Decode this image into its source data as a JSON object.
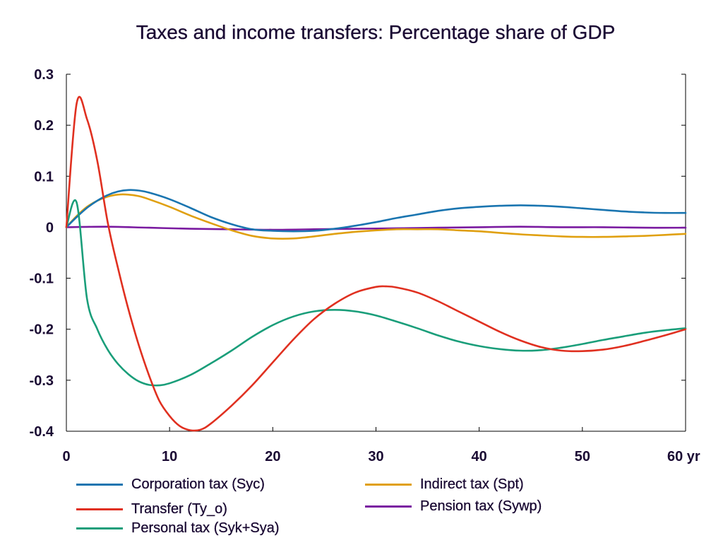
{
  "chart_data": {
    "type": "line",
    "title": "Taxes and income transfers: Percentage share of GDP",
    "xlabel": "",
    "ylabel": "",
    "xlim": [
      0,
      60
    ],
    "ylim": [
      -0.4,
      0.3
    ],
    "x_ticks": [
      0,
      10,
      20,
      30,
      40,
      50,
      60
    ],
    "x_tick_labels": [
      "0",
      "10",
      "20",
      "30",
      "40",
      "50",
      "60 yr"
    ],
    "y_ticks": [
      0.3,
      0.2,
      0.1,
      0,
      -0.1,
      -0.2,
      -0.3,
      -0.4
    ],
    "y_tick_labels": [
      "0.3",
      "0.2",
      "0.1",
      "0",
      "-0.1",
      "-0.2",
      "-0.3",
      "-0.4"
    ],
    "grid": false,
    "legend_position": "bottom",
    "series": [
      {
        "name": "Corporation tax (Syc)",
        "color": "#1a75b0",
        "points": [
          [
            0,
            0
          ],
          [
            1,
            0.02
          ],
          [
            2,
            0.038
          ],
          [
            3,
            0.052
          ],
          [
            4,
            0.063
          ],
          [
            5,
            0.07
          ],
          [
            6,
            0.073
          ],
          [
            7,
            0.072
          ],
          [
            8,
            0.068
          ],
          [
            10,
            0.055
          ],
          [
            12,
            0.038
          ],
          [
            14,
            0.02
          ],
          [
            16,
            0.006
          ],
          [
            18,
            -0.004
          ],
          [
            20,
            -0.007
          ],
          [
            22,
            -0.008
          ],
          [
            24,
            -0.007
          ],
          [
            26,
            -0.003
          ],
          [
            28,
            0.003
          ],
          [
            30,
            0.01
          ],
          [
            32,
            0.018
          ],
          [
            34,
            0.025
          ],
          [
            36,
            0.032
          ],
          [
            38,
            0.037
          ],
          [
            40,
            0.04
          ],
          [
            42,
            0.042
          ],
          [
            44,
            0.043
          ],
          [
            46,
            0.042
          ],
          [
            48,
            0.04
          ],
          [
            50,
            0.037
          ],
          [
            52,
            0.034
          ],
          [
            54,
            0.031
          ],
          [
            56,
            0.029
          ],
          [
            58,
            0.028
          ],
          [
            60,
            0.028
          ]
        ]
      },
      {
        "name": "Transfer (Ty_o)",
        "color": "#e03020",
        "points": [
          [
            0,
            0
          ],
          [
            1,
            0.243
          ],
          [
            2,
            0.212
          ],
          [
            3,
            0.13
          ],
          [
            4,
            0.01
          ],
          [
            5,
            -0.08
          ],
          [
            6,
            -0.16
          ],
          [
            7,
            -0.23
          ],
          [
            8,
            -0.29
          ],
          [
            9,
            -0.34
          ],
          [
            10,
            -0.37
          ],
          [
            11,
            -0.39
          ],
          [
            12,
            -0.398
          ],
          [
            13,
            -0.397
          ],
          [
            14,
            -0.385
          ],
          [
            16,
            -0.35
          ],
          [
            18,
            -0.31
          ],
          [
            20,
            -0.265
          ],
          [
            22,
            -0.22
          ],
          [
            24,
            -0.18
          ],
          [
            26,
            -0.15
          ],
          [
            28,
            -0.128
          ],
          [
            30,
            -0.117
          ],
          [
            31,
            -0.116
          ],
          [
            32,
            -0.118
          ],
          [
            34,
            -0.128
          ],
          [
            36,
            -0.145
          ],
          [
            38,
            -0.165
          ],
          [
            40,
            -0.185
          ],
          [
            42,
            -0.205
          ],
          [
            44,
            -0.222
          ],
          [
            46,
            -0.235
          ],
          [
            48,
            -0.242
          ],
          [
            50,
            -0.243
          ],
          [
            52,
            -0.24
          ],
          [
            54,
            -0.233
          ],
          [
            56,
            -0.223
          ],
          [
            58,
            -0.212
          ],
          [
            60,
            -0.2
          ]
        ]
      },
      {
        "name": "Personal tax (Syk+Sya)",
        "color": "#1a9e7a",
        "points": [
          [
            0,
            0
          ],
          [
            1,
            0.048
          ],
          [
            2,
            -0.14
          ],
          [
            3,
            -0.2
          ],
          [
            4,
            -0.24
          ],
          [
            5,
            -0.268
          ],
          [
            6,
            -0.288
          ],
          [
            7,
            -0.302
          ],
          [
            8,
            -0.309
          ],
          [
            9,
            -0.31
          ],
          [
            10,
            -0.306
          ],
          [
            12,
            -0.29
          ],
          [
            14,
            -0.267
          ],
          [
            16,
            -0.242
          ],
          [
            18,
            -0.215
          ],
          [
            20,
            -0.192
          ],
          [
            22,
            -0.175
          ],
          [
            24,
            -0.165
          ],
          [
            26,
            -0.162
          ],
          [
            28,
            -0.165
          ],
          [
            30,
            -0.173
          ],
          [
            32,
            -0.185
          ],
          [
            34,
            -0.198
          ],
          [
            36,
            -0.212
          ],
          [
            38,
            -0.224
          ],
          [
            40,
            -0.233
          ],
          [
            42,
            -0.239
          ],
          [
            44,
            -0.242
          ],
          [
            46,
            -0.241
          ],
          [
            48,
            -0.236
          ],
          [
            50,
            -0.229
          ],
          [
            52,
            -0.221
          ],
          [
            54,
            -0.214
          ],
          [
            56,
            -0.207
          ],
          [
            58,
            -0.202
          ],
          [
            60,
            -0.198
          ]
        ]
      },
      {
        "name": "Indirect tax (Spt)",
        "color": "#e0a010",
        "points": [
          [
            0,
            0
          ],
          [
            1,
            0.022
          ],
          [
            2,
            0.04
          ],
          [
            3,
            0.052
          ],
          [
            4,
            0.06
          ],
          [
            5,
            0.064
          ],
          [
            6,
            0.064
          ],
          [
            7,
            0.061
          ],
          [
            8,
            0.055
          ],
          [
            10,
            0.04
          ],
          [
            12,
            0.023
          ],
          [
            14,
            0.008
          ],
          [
            16,
            -0.006
          ],
          [
            18,
            -0.017
          ],
          [
            20,
            -0.022
          ],
          [
            22,
            -0.022
          ],
          [
            24,
            -0.018
          ],
          [
            26,
            -0.013
          ],
          [
            28,
            -0.009
          ],
          [
            30,
            -0.006
          ],
          [
            32,
            -0.004
          ],
          [
            34,
            -0.004
          ],
          [
            36,
            -0.004
          ],
          [
            38,
            -0.006
          ],
          [
            40,
            -0.008
          ],
          [
            42,
            -0.011
          ],
          [
            44,
            -0.014
          ],
          [
            46,
            -0.016
          ],
          [
            48,
            -0.018
          ],
          [
            50,
            -0.019
          ],
          [
            52,
            -0.019
          ],
          [
            54,
            -0.018
          ],
          [
            56,
            -0.017
          ],
          [
            58,
            -0.015
          ],
          [
            60,
            -0.013
          ]
        ]
      },
      {
        "name": "Pension tax (Sywp)",
        "color": "#7a1aa0",
        "points": [
          [
            0,
            0
          ],
          [
            4,
            0.001
          ],
          [
            8,
            -0.001
          ],
          [
            12,
            -0.003
          ],
          [
            16,
            -0.004
          ],
          [
            20,
            -0.005
          ],
          [
            24,
            -0.004
          ],
          [
            28,
            -0.003
          ],
          [
            32,
            -0.002
          ],
          [
            36,
            -0.001
          ],
          [
            40,
            0
          ],
          [
            44,
            0.001
          ],
          [
            48,
            0
          ],
          [
            52,
            0
          ],
          [
            56,
            -0.001
          ],
          [
            60,
            -0.001
          ]
        ]
      }
    ]
  }
}
